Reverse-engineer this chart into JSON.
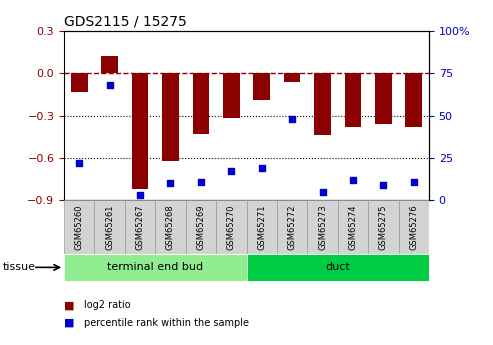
{
  "title": "GDS2115 / 15275",
  "samples": [
    "GSM65260",
    "GSM65261",
    "GSM65267",
    "GSM65268",
    "GSM65269",
    "GSM65270",
    "GSM65271",
    "GSM65272",
    "GSM65273",
    "GSM65274",
    "GSM65275",
    "GSM65276"
  ],
  "log2_ratio": [
    -0.13,
    0.12,
    -0.82,
    -0.62,
    -0.43,
    -0.32,
    -0.19,
    -0.06,
    -0.44,
    -0.38,
    -0.36,
    -0.38
  ],
  "percentile_rank": [
    22,
    68,
    3,
    10,
    11,
    17,
    19,
    48,
    5,
    12,
    9,
    11
  ],
  "bar_color": "#8B0000",
  "dot_color": "#0000CC",
  "groups": [
    {
      "label": "terminal end bud",
      "start": 0,
      "end": 6,
      "color": "#90EE90"
    },
    {
      "label": "duct",
      "start": 6,
      "end": 12,
      "color": "#00CC44"
    }
  ],
  "ylim_left": [
    -0.9,
    0.3
  ],
  "ylim_right": [
    0,
    100
  ],
  "yticks_left": [
    -0.9,
    -0.6,
    -0.3,
    0,
    0.3
  ],
  "yticks_right": [
    0,
    25,
    50,
    75,
    100
  ],
  "hline_y": 0,
  "dotted_lines": [
    -0.3,
    -0.6
  ],
  "legend_items": [
    {
      "label": "log2 ratio",
      "color": "#8B0000"
    },
    {
      "label": "percentile rank within the sample",
      "color": "#0000CC"
    }
  ],
  "tissue_label": "tissue",
  "background_color": "#ffffff",
  "plot_bg_color": "#ffffff",
  "bar_width": 0.55,
  "label_box_color": "#D3D3D3",
  "label_box_edge": "#999999"
}
